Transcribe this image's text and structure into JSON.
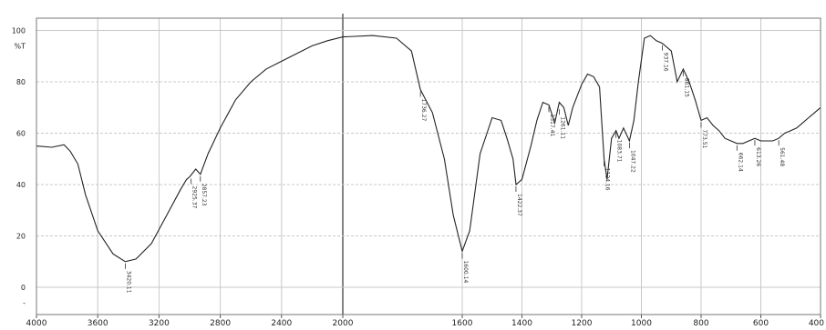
{
  "chart_data": {
    "type": "line",
    "title": "",
    "xlabel": "",
    "ylabel": "%T",
    "xlim": [
      4000,
      400
    ],
    "ylim": [
      -10,
      102
    ],
    "x_ticks": [
      "4000",
      "3600",
      "3200",
      "2800",
      "2400",
      "2000",
      "1600",
      "1400",
      "1200",
      "1000",
      "800",
      "600",
      "400"
    ],
    "x_tick_values": [
      4000,
      3600,
      3200,
      2800,
      2400,
      2000,
      1600,
      1400,
      1200,
      1000,
      800,
      600,
      400
    ],
    "y_ticks": [
      "100",
      "%T",
      "80",
      "60",
      "40",
      "20",
      "0",
      "-"
    ],
    "y_tick_values": [
      100,
      94,
      80,
      60,
      40,
      20,
      0,
      -6
    ],
    "grid": true,
    "legend": "none",
    "line_color": "#222222",
    "grid_color": "#c8c8c8",
    "series": [
      {
        "values": [
          [
            4000,
            55
          ],
          [
            3900,
            54.5
          ],
          [
            3820,
            55.5
          ],
          [
            3780,
            53
          ],
          [
            3730,
            48
          ],
          [
            3680,
            36
          ],
          [
            3600,
            22
          ],
          [
            3500,
            13
          ],
          [
            3420,
            10
          ],
          [
            3350,
            11
          ],
          [
            3250,
            17
          ],
          [
            3150,
            28
          ],
          [
            3060,
            38
          ],
          [
            3020,
            42
          ],
          [
            3000,
            43
          ],
          [
            2960,
            46
          ],
          [
            2930,
            44
          ],
          [
            2880,
            52
          ],
          [
            2800,
            62
          ],
          [
            2700,
            73
          ],
          [
            2600,
            80
          ],
          [
            2500,
            85
          ],
          [
            2400,
            88
          ],
          [
            2300,
            91
          ],
          [
            2200,
            94
          ],
          [
            2100,
            96
          ],
          [
            2000,
            97.5
          ],
          [
            1900,
            98
          ],
          [
            1820,
            97
          ],
          [
            1770,
            92
          ],
          [
            1740,
            77
          ],
          [
            1700,
            68
          ],
          [
            1660,
            50
          ],
          [
            1630,
            28
          ],
          [
            1600,
            14
          ],
          [
            1575,
            22
          ],
          [
            1540,
            52
          ],
          [
            1500,
            66
          ],
          [
            1470,
            65
          ],
          [
            1450,
            58
          ],
          [
            1430,
            50
          ],
          [
            1420,
            40
          ],
          [
            1400,
            42
          ],
          [
            1370,
            55
          ],
          [
            1350,
            65
          ],
          [
            1330,
            72
          ],
          [
            1310,
            71
          ],
          [
            1290,
            64
          ],
          [
            1275,
            72
          ],
          [
            1260,
            70
          ],
          [
            1245,
            63
          ],
          [
            1230,
            70
          ],
          [
            1200,
            79
          ],
          [
            1180,
            83
          ],
          [
            1160,
            82
          ],
          [
            1140,
            78
          ],
          [
            1125,
            50
          ],
          [
            1115,
            42
          ],
          [
            1100,
            58
          ],
          [
            1085,
            61
          ],
          [
            1075,
            58
          ],
          [
            1060,
            62
          ],
          [
            1040,
            57
          ],
          [
            1025,
            65
          ],
          [
            1010,
            80
          ],
          [
            990,
            97
          ],
          [
            970,
            98
          ],
          [
            950,
            96
          ],
          [
            930,
            95
          ],
          [
            900,
            92
          ],
          [
            880,
            80
          ],
          [
            860,
            85
          ],
          [
            840,
            80
          ],
          [
            820,
            73
          ],
          [
            800,
            65
          ],
          [
            780,
            66
          ],
          [
            760,
            63
          ],
          [
            740,
            61
          ],
          [
            720,
            58
          ],
          [
            700,
            57
          ],
          [
            680,
            56
          ],
          [
            660,
            56
          ],
          [
            640,
            57
          ],
          [
            620,
            58
          ],
          [
            600,
            57
          ],
          [
            580,
            57
          ],
          [
            560,
            57
          ],
          [
            540,
            58
          ],
          [
            520,
            60
          ],
          [
            500,
            61
          ],
          [
            480,
            62
          ],
          [
            460,
            64
          ],
          [
            440,
            66
          ],
          [
            420,
            68
          ],
          [
            400,
            70
          ]
        ]
      }
    ],
    "annotations": [
      {
        "x": 3420,
        "y": 10,
        "text": "3420.11"
      },
      {
        "x": 2990,
        "y": 43,
        "text": "2925.37"
      },
      {
        "x": 2930,
        "y": 44,
        "text": "2857.23"
      },
      {
        "x": 1740,
        "y": 77,
        "text": "1736.27"
      },
      {
        "x": 1600,
        "y": 14,
        "text": "1600.14"
      },
      {
        "x": 1420,
        "y": 40,
        "text": "1422.37"
      },
      {
        "x": 1310,
        "y": 71,
        "text": "1317.41"
      },
      {
        "x": 1275,
        "y": 70,
        "text": "1261.11"
      },
      {
        "x": 1125,
        "y": 50,
        "text": "1124.16"
      },
      {
        "x": 1085,
        "y": 61,
        "text": "1083.71"
      },
      {
        "x": 1040,
        "y": 57,
        "text": "1047.22"
      },
      {
        "x": 930,
        "y": 95,
        "text": "937.16"
      },
      {
        "x": 860,
        "y": 85,
        "text": "861.15"
      },
      {
        "x": 800,
        "y": 65,
        "text": "773.51"
      },
      {
        "x": 680,
        "y": 56,
        "text": "662.14"
      },
      {
        "x": 620,
        "y": 58,
        "text": "613.26"
      },
      {
        "x": 540,
        "y": 58,
        "text": "561.48"
      }
    ]
  }
}
